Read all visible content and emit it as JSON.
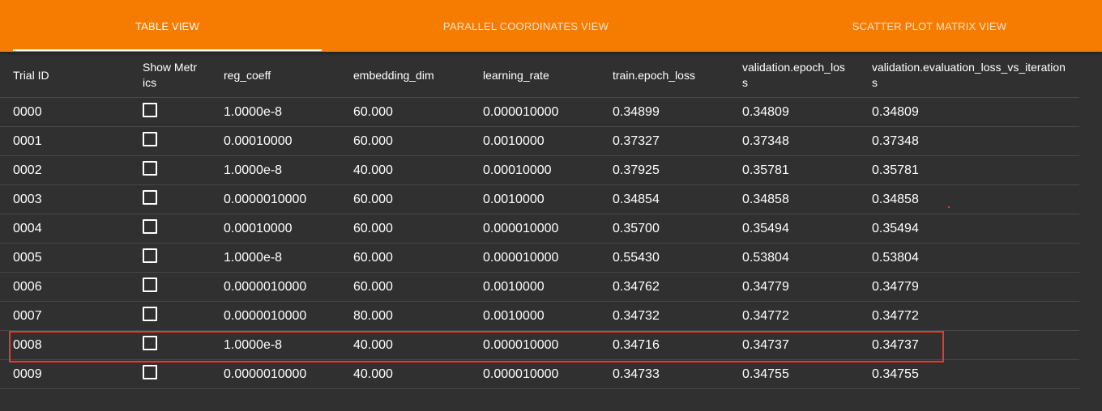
{
  "tabs": [
    {
      "label": "TABLE VIEW",
      "active": true
    },
    {
      "label": "PARALLEL COORDINATES VIEW",
      "active": false
    },
    {
      "label": "SCATTER PLOT MATRIX VIEW",
      "active": false
    }
  ],
  "colors": {
    "tabbar": "#f57c00",
    "background": "#303030",
    "highlight": "#e53935"
  },
  "table": {
    "headers": [
      "Trial ID",
      "Show Metrics",
      "reg_coeff",
      "embedding_dim",
      "learning_rate",
      "train.epoch_loss",
      "validation.epoch_loss",
      "validation.evaluation_loss_vs_iterations"
    ],
    "rows": [
      {
        "id": "0000",
        "reg_coeff": "1.0000e-8",
        "embedding_dim": "60.000",
        "learning_rate": "0.000010000",
        "train_epoch_loss": "0.34899",
        "validation_epoch_loss": "0.34809",
        "validation_eval_loss": "0.34809",
        "checked": false
      },
      {
        "id": "0001",
        "reg_coeff": "0.00010000",
        "embedding_dim": "60.000",
        "learning_rate": "0.0010000",
        "train_epoch_loss": "0.37327",
        "validation_epoch_loss": "0.37348",
        "validation_eval_loss": "0.37348",
        "checked": false
      },
      {
        "id": "0002",
        "reg_coeff": "1.0000e-8",
        "embedding_dim": "40.000",
        "learning_rate": "0.00010000",
        "train_epoch_loss": "0.37925",
        "validation_epoch_loss": "0.35781",
        "validation_eval_loss": "0.35781",
        "checked": false
      },
      {
        "id": "0003",
        "reg_coeff": "0.0000010000",
        "embedding_dim": "60.000",
        "learning_rate": "0.0010000",
        "train_epoch_loss": "0.34854",
        "validation_epoch_loss": "0.34858",
        "validation_eval_loss": "0.34858",
        "checked": false
      },
      {
        "id": "0004",
        "reg_coeff": "0.00010000",
        "embedding_dim": "60.000",
        "learning_rate": "0.000010000",
        "train_epoch_loss": "0.35700",
        "validation_epoch_loss": "0.35494",
        "validation_eval_loss": "0.35494",
        "checked": false
      },
      {
        "id": "0005",
        "reg_coeff": "1.0000e-8",
        "embedding_dim": "60.000",
        "learning_rate": "0.000010000",
        "train_epoch_loss": "0.55430",
        "validation_epoch_loss": "0.53804",
        "validation_eval_loss": "0.53804",
        "checked": false
      },
      {
        "id": "0006",
        "reg_coeff": "0.0000010000",
        "embedding_dim": "60.000",
        "learning_rate": "0.0010000",
        "train_epoch_loss": "0.34762",
        "validation_epoch_loss": "0.34779",
        "validation_eval_loss": "0.34779",
        "checked": false
      },
      {
        "id": "0007",
        "reg_coeff": "0.0000010000",
        "embedding_dim": "80.000",
        "learning_rate": "0.0010000",
        "train_epoch_loss": "0.34732",
        "validation_epoch_loss": "0.34772",
        "validation_eval_loss": "0.34772",
        "checked": false
      },
      {
        "id": "0008",
        "reg_coeff": "1.0000e-8",
        "embedding_dim": "40.000",
        "learning_rate": "0.000010000",
        "train_epoch_loss": "0.34716",
        "validation_epoch_loss": "0.34737",
        "validation_eval_loss": "0.34737",
        "checked": false,
        "highlighted": true
      },
      {
        "id": "0009",
        "reg_coeff": "0.0000010000",
        "embedding_dim": "40.000",
        "learning_rate": "0.000010000",
        "train_epoch_loss": "0.34733",
        "validation_epoch_loss": "0.34755",
        "validation_eval_loss": "0.34755",
        "checked": false
      }
    ]
  }
}
